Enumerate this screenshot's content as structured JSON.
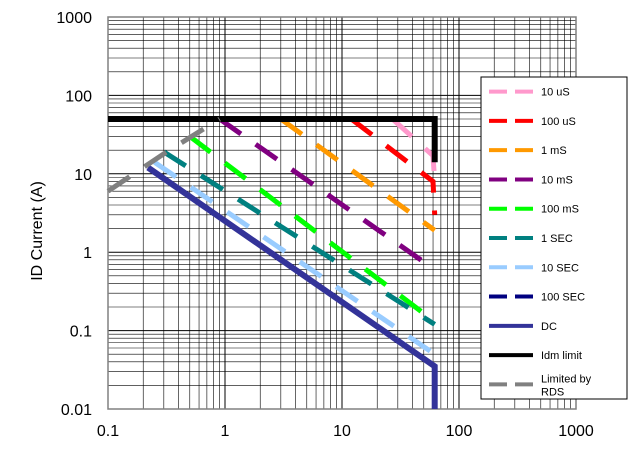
{
  "chart_data": {
    "type": "line",
    "title": "",
    "xlabel": "",
    "ylabel": "ID Current (A)",
    "x_scale": "log",
    "y_scale": "log",
    "xlim": [
      0.1,
      1000
    ],
    "ylim": [
      0.01,
      1000
    ],
    "x_ticks": [
      "0.1",
      "1",
      "10",
      "100",
      "1000"
    ],
    "y_ticks": [
      "1000",
      "100",
      "10",
      "1",
      "0.1",
      "0.01"
    ],
    "grid": "minor and major",
    "legend_position": "right",
    "series": [
      {
        "name": "10 uS",
        "color": "#ff99cc",
        "dash": "dashed",
        "points": [
          [
            27,
            50
          ],
          [
            60,
            17
          ],
          [
            62,
            8
          ]
        ]
      },
      {
        "name": "100 uS",
        "color": "#ff0000",
        "dash": "dashed",
        "points": [
          [
            12,
            50
          ],
          [
            60,
            8
          ],
          [
            62,
            3
          ]
        ]
      },
      {
        "name": "1 mS",
        "color": "#ff9900",
        "dash": "dashed",
        "points": [
          [
            3,
            50
          ],
          [
            62,
            1.9
          ]
        ]
      },
      {
        "name": "10 mS",
        "color": "#800080",
        "dash": "dashed",
        "points": [
          [
            0.9,
            50
          ],
          [
            62,
            0.6
          ]
        ]
      },
      {
        "name": "100 mS",
        "color": "#00ff00",
        "dash": "dashed",
        "points": [
          [
            0.5,
            30
          ],
          [
            62,
            0.13
          ]
        ]
      },
      {
        "name": "1 SEC",
        "color": "#008080",
        "dash": "dashed",
        "points": [
          [
            0.3,
            19
          ],
          [
            62,
            0.12
          ]
        ]
      },
      {
        "name": "10 SEC",
        "color": "#99ccff",
        "dash": "dashed",
        "points": [
          [
            0.25,
            14
          ],
          [
            62,
            0.05
          ]
        ]
      },
      {
        "name": "100 SEC",
        "color": "#000080",
        "dash": "dashed",
        "points": [
          [
            0.22,
            12
          ],
          [
            62,
            0.035
          ]
        ]
      },
      {
        "name": "DC",
        "color": "#333399",
        "dash": "solid",
        "points": [
          [
            0.22,
            12
          ],
          [
            62,
            0.035
          ],
          [
            62,
            0.01
          ]
        ]
      },
      {
        "name": "Idm limit",
        "color": "#000000",
        "dash": "solid",
        "points": [
          [
            0.1,
            50
          ],
          [
            62,
            50
          ],
          [
            62,
            14
          ]
        ]
      },
      {
        "name": "Limited by RDS",
        "color": "#808080",
        "dash": "dashed",
        "points": [
          [
            0.1,
            6
          ],
          [
            0.3,
            18
          ],
          [
            0.9,
            50
          ]
        ]
      }
    ]
  }
}
